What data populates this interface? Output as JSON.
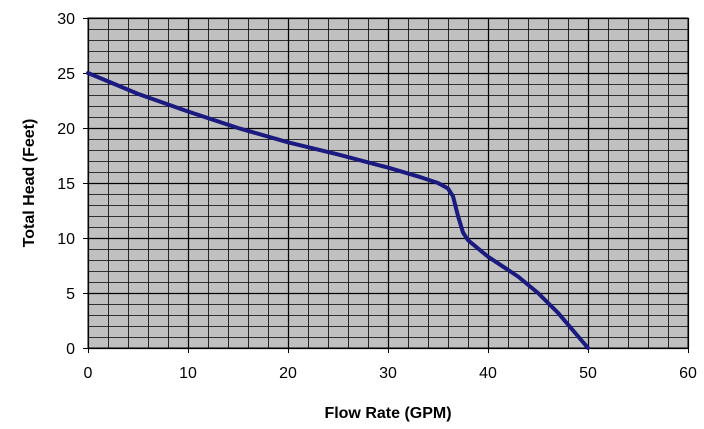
{
  "chart_data": {
    "type": "line",
    "title": "",
    "xlabel": "Flow Rate (GPM)",
    "ylabel": "Total Head (Feet)",
    "xlim": [
      0,
      60
    ],
    "ylim": [
      0,
      30
    ],
    "x_ticks": [
      0,
      10,
      20,
      30,
      40,
      50,
      60
    ],
    "y_ticks": [
      0,
      5,
      10,
      15,
      20,
      25,
      30
    ],
    "grid": true,
    "minor_grid": {
      "x_step": 2,
      "y_step": 1
    },
    "legend": "none",
    "series": [
      {
        "x": [
          0,
          5,
          10,
          15,
          20,
          25,
          30,
          33,
          35,
          36,
          36.5,
          37,
          37.5,
          38,
          40,
          43,
          45,
          47,
          50
        ],
        "y": [
          25,
          23.1,
          21.5,
          20,
          18.7,
          17.6,
          16.4,
          15.6,
          15,
          14.5,
          13.8,
          12,
          10.5,
          9.8,
          8.3,
          6.5,
          5,
          3.2,
          0
        ],
        "color": "#1a1a80"
      }
    ]
  },
  "colors": {
    "plot_background": "#c0c0c0",
    "grid": "#000000",
    "line": "#1a1a80"
  }
}
